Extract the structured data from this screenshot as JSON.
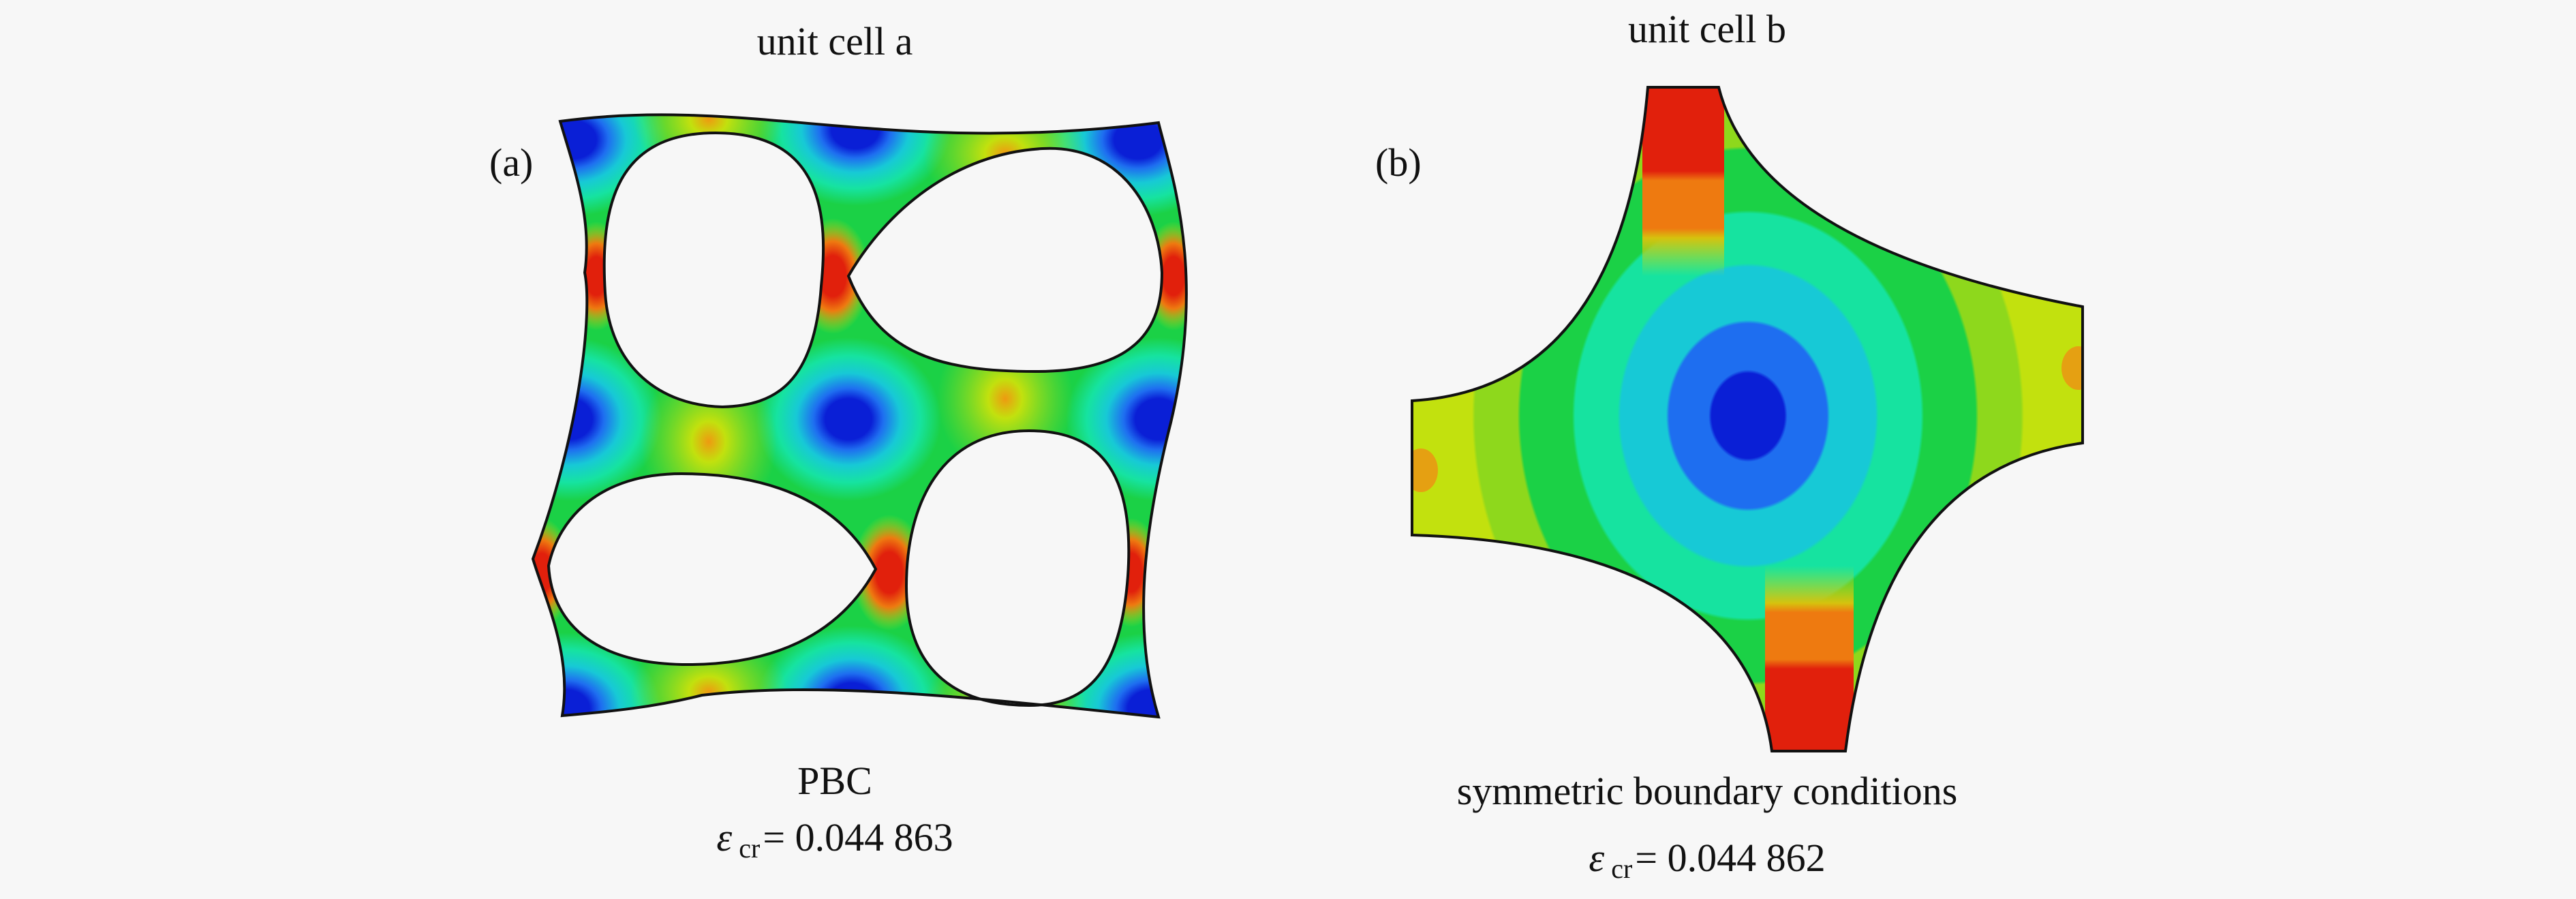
{
  "panel_a": {
    "title": "unit cell a",
    "label": "(a)",
    "boundary": "PBC",
    "eps_symbol": "ε",
    "eps_subscript": "cr",
    "eps_value": "= 0.044 863"
  },
  "panel_b": {
    "title": "unit cell b",
    "label": "(b)",
    "boundary": "symmetric boundary conditions",
    "eps_symbol": "ε",
    "eps_subscript": "cr",
    "eps_value": "= 0.044 862"
  },
  "colors": {
    "blue_dark": "#0a1fd6",
    "blue": "#1e6ef0",
    "cyan": "#17c9d6",
    "aqua": "#16e3a0",
    "green": "#1bd146",
    "lime": "#8ed81c",
    "yellow_green": "#c2e10e",
    "orange": "#ee7a10",
    "red": "#e1200c"
  }
}
